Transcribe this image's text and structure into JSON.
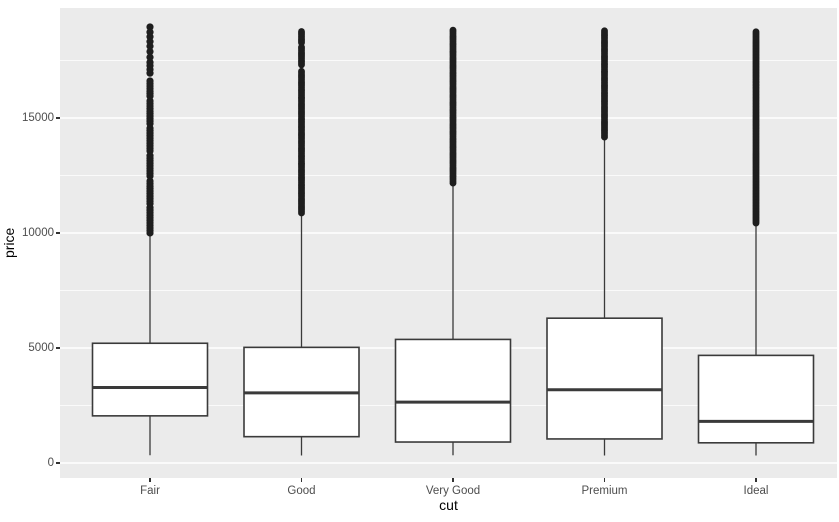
{
  "figure": {
    "background": "#FFFFFF",
    "panel_background": "#EBEBEB",
    "grid_color": "#FFFFFF",
    "box_fill": "#FFFFFF",
    "box_stroke": "#3A3A3A",
    "outlier_color": "#1E1E1E",
    "tick_label_color": "#4D4D4D",
    "axis_title_color": "#000000"
  },
  "chart_data": {
    "type": "boxplot",
    "title": "",
    "xlabel": "cut",
    "ylabel": "price",
    "categories": [
      "Fair",
      "Good",
      "Very Good",
      "Premium",
      "Ideal"
    ],
    "y_major_ticks": [
      0,
      5000,
      10000,
      15000
    ],
    "y_minor_ticks": [
      2500,
      7500,
      12500,
      17500
    ],
    "ylim": [
      -600,
      19750
    ],
    "grid": true,
    "legend_position": "none",
    "series": [
      {
        "category": "Fair",
        "min": 337,
        "q1": 2050,
        "median": 3282,
        "q3": 5206,
        "whisker_high": 9900,
        "max": 18960,
        "outlier_points": [
          18960,
          18730,
          18530,
          18320,
          18120,
          17890,
          17640,
          17420,
          17270,
          17110,
          16950
        ],
        "outlier_segments": [
          [
            10000,
            11150
          ],
          [
            11270,
            12330
          ],
          [
            12480,
            13420
          ],
          [
            13570,
            14580
          ],
          [
            14750,
            15800
          ],
          [
            15950,
            16700
          ]
        ],
        "dot_step": 110
      },
      {
        "category": "Good",
        "min": 327,
        "q1": 1145,
        "median": 3050,
        "q3": 5028,
        "whisker_high": 10870,
        "max": 18780,
        "outlier_points": [],
        "outlier_segments": [
          [
            10870,
            17060
          ],
          [
            17310,
            18080
          ],
          [
            18270,
            18780
          ]
        ],
        "dot_step": 70
      },
      {
        "category": "Very Good",
        "min": 336,
        "q1": 912,
        "median": 2648,
        "q3": 5373,
        "whisker_high": 12170,
        "max": 18820,
        "outlier_points": [],
        "outlier_segments": [
          [
            12170,
            18820
          ]
        ],
        "dot_step": 70
      },
      {
        "category": "Premium",
        "min": 326,
        "q1": 1046,
        "median": 3185,
        "q3": 6296,
        "whisker_high": 14170,
        "max": 18823,
        "outlier_points": [],
        "outlier_segments": [
          [
            14170,
            18823
          ]
        ],
        "dot_step": 70
      },
      {
        "category": "Ideal",
        "min": 326,
        "q1": 878,
        "median": 1810,
        "q3": 4679,
        "whisker_high": 10430,
        "max": 18806,
        "outlier_points": [],
        "outlier_segments": [
          [
            10430,
            18806
          ]
        ],
        "dot_step": 65
      }
    ]
  }
}
